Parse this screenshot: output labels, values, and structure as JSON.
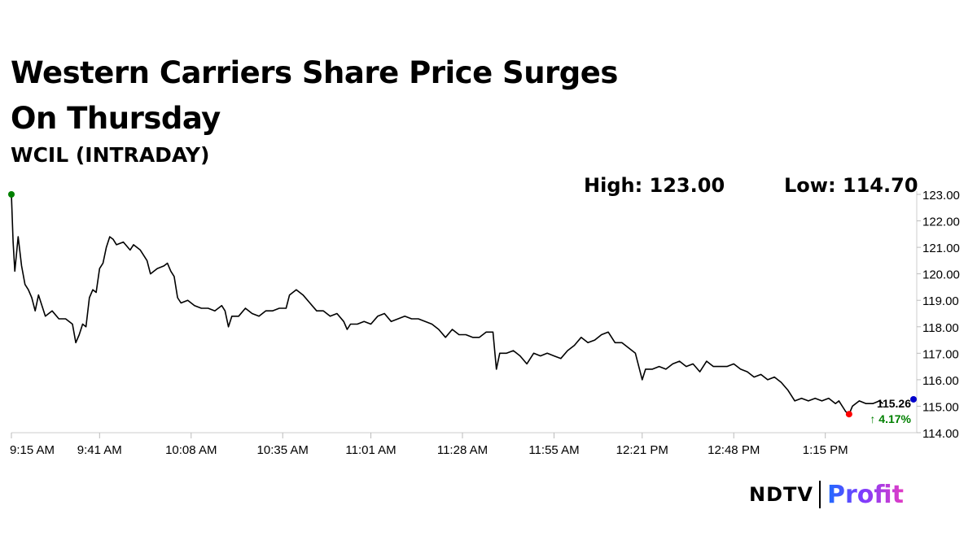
{
  "headline": "Western Carriers Share Price Surges On Thursday",
  "subtitle": "WCIL (INTRADAY)",
  "high_label": "High: 123.00",
  "low_label": "Low: 114.70",
  "brand": {
    "ndtv": "NDTV",
    "profit": "Profit"
  },
  "chart_data": {
    "type": "line",
    "ylim": [
      114.0,
      123.0
    ],
    "yticks": [
      "114.00",
      "115.00",
      "116.00",
      "117.00",
      "118.00",
      "119.00",
      "120.00",
      "121.00",
      "122.00",
      "123.00"
    ],
    "xtick_labels": [
      "9:15 AM",
      "9:41 AM",
      "10:08 AM",
      "10:35 AM",
      "11:01 AM",
      "11:28 AM",
      "11:55 AM",
      "12:21 PM",
      "12:48 PM",
      "1:15 PM"
    ],
    "xtick_minutes": [
      0,
      26,
      53,
      80,
      106,
      133,
      160,
      186,
      213,
      240
    ],
    "x_max_minutes": 266,
    "series": [
      {
        "color": "#000000",
        "points": [
          [
            0,
            123.0
          ],
          [
            0.5,
            121.2
          ],
          [
            1,
            120.1
          ],
          [
            2,
            121.4
          ],
          [
            3,
            120.3
          ],
          [
            4,
            119.6
          ],
          [
            5,
            119.4
          ],
          [
            6,
            119.1
          ],
          [
            7,
            118.6
          ],
          [
            8,
            119.2
          ],
          [
            10,
            118.4
          ],
          [
            12,
            118.6
          ],
          [
            14,
            118.3
          ],
          [
            16,
            118.3
          ],
          [
            18,
            118.1
          ],
          [
            19,
            117.4
          ],
          [
            20,
            117.7
          ],
          [
            21,
            118.1
          ],
          [
            22,
            118.0
          ],
          [
            23,
            119.1
          ],
          [
            24,
            119.4
          ],
          [
            25,
            119.3
          ],
          [
            26,
            120.2
          ],
          [
            27,
            120.4
          ],
          [
            28,
            121.0
          ],
          [
            29,
            121.4
          ],
          [
            30,
            121.3
          ],
          [
            31,
            121.1
          ],
          [
            33,
            121.2
          ],
          [
            35,
            120.9
          ],
          [
            36,
            121.1
          ],
          [
            38,
            120.9
          ],
          [
            40,
            120.5
          ],
          [
            41,
            120.0
          ],
          [
            43,
            120.2
          ],
          [
            45,
            120.3
          ],
          [
            46,
            120.4
          ],
          [
            47,
            120.1
          ],
          [
            48,
            119.9
          ],
          [
            49,
            119.1
          ],
          [
            50,
            118.9
          ],
          [
            52,
            119.0
          ],
          [
            54,
            118.8
          ],
          [
            56,
            118.7
          ],
          [
            58,
            118.7
          ],
          [
            60,
            118.6
          ],
          [
            62,
            118.8
          ],
          [
            63,
            118.6
          ],
          [
            64,
            118.0
          ],
          [
            65,
            118.4
          ],
          [
            67,
            118.4
          ],
          [
            69,
            118.7
          ],
          [
            71,
            118.5
          ],
          [
            73,
            118.4
          ],
          [
            75,
            118.6
          ],
          [
            77,
            118.6
          ],
          [
            79,
            118.7
          ],
          [
            81,
            118.7
          ],
          [
            82,
            119.2
          ],
          [
            84,
            119.4
          ],
          [
            86,
            119.2
          ],
          [
            88,
            118.9
          ],
          [
            90,
            118.6
          ],
          [
            92,
            118.6
          ],
          [
            94,
            118.4
          ],
          [
            96,
            118.5
          ],
          [
            98,
            118.2
          ],
          [
            99,
            117.9
          ],
          [
            100,
            118.1
          ],
          [
            102,
            118.1
          ],
          [
            104,
            118.2
          ],
          [
            106,
            118.1
          ],
          [
            108,
            118.4
          ],
          [
            110,
            118.5
          ],
          [
            112,
            118.2
          ],
          [
            114,
            118.3
          ],
          [
            116,
            118.4
          ],
          [
            118,
            118.3
          ],
          [
            120,
            118.3
          ],
          [
            122,
            118.2
          ],
          [
            124,
            118.1
          ],
          [
            126,
            117.9
          ],
          [
            128,
            117.6
          ],
          [
            130,
            117.9
          ],
          [
            132,
            117.7
          ],
          [
            134,
            117.7
          ],
          [
            136,
            117.6
          ],
          [
            138,
            117.6
          ],
          [
            140,
            117.8
          ],
          [
            142,
            117.8
          ],
          [
            143,
            116.4
          ],
          [
            144,
            117.0
          ],
          [
            146,
            117.0
          ],
          [
            148,
            117.1
          ],
          [
            150,
            116.9
          ],
          [
            152,
            116.6
          ],
          [
            154,
            117.0
          ],
          [
            156,
            116.9
          ],
          [
            158,
            117.0
          ],
          [
            160,
            116.9
          ],
          [
            162,
            116.8
          ],
          [
            164,
            117.1
          ],
          [
            166,
            117.3
          ],
          [
            168,
            117.6
          ],
          [
            170,
            117.4
          ],
          [
            172,
            117.5
          ],
          [
            174,
            117.7
          ],
          [
            176,
            117.8
          ],
          [
            178,
            117.4
          ],
          [
            180,
            117.4
          ],
          [
            182,
            117.2
          ],
          [
            184,
            117.0
          ],
          [
            186,
            116.0
          ],
          [
            187,
            116.4
          ],
          [
            189,
            116.4
          ],
          [
            191,
            116.5
          ],
          [
            193,
            116.4
          ],
          [
            195,
            116.6
          ],
          [
            197,
            116.7
          ],
          [
            199,
            116.5
          ],
          [
            201,
            116.6
          ],
          [
            203,
            116.3
          ],
          [
            205,
            116.7
          ],
          [
            207,
            116.5
          ],
          [
            209,
            116.5
          ],
          [
            211,
            116.5
          ],
          [
            213,
            116.6
          ],
          [
            215,
            116.4
          ],
          [
            217,
            116.3
          ],
          [
            219,
            116.1
          ],
          [
            221,
            116.2
          ],
          [
            223,
            116.0
          ],
          [
            225,
            116.1
          ],
          [
            227,
            115.9
          ],
          [
            229,
            115.6
          ],
          [
            231,
            115.2
          ],
          [
            233,
            115.3
          ],
          [
            235,
            115.2
          ],
          [
            237,
            115.3
          ],
          [
            239,
            115.2
          ],
          [
            241,
            115.3
          ],
          [
            243,
            115.1
          ],
          [
            244,
            115.2
          ],
          [
            246,
            114.8
          ],
          [
            247,
            114.7
          ],
          [
            248,
            115.0
          ],
          [
            250,
            115.2
          ],
          [
            252,
            115.1
          ],
          [
            254,
            115.1
          ],
          [
            256,
            115.2
          ],
          [
            257,
            115.1
          ]
        ]
      }
    ],
    "markers": [
      {
        "name": "high",
        "x": 0,
        "y": 123.0,
        "color": "#008000"
      },
      {
        "name": "low",
        "x": 247,
        "y": 114.7,
        "color": "#ff0000"
      },
      {
        "name": "current",
        "x": 266,
        "y": 115.26,
        "color": "#0000cc"
      }
    ],
    "last_price_label": "115.26",
    "change_label": "↑ 4.17%",
    "change_color": "#008000"
  }
}
